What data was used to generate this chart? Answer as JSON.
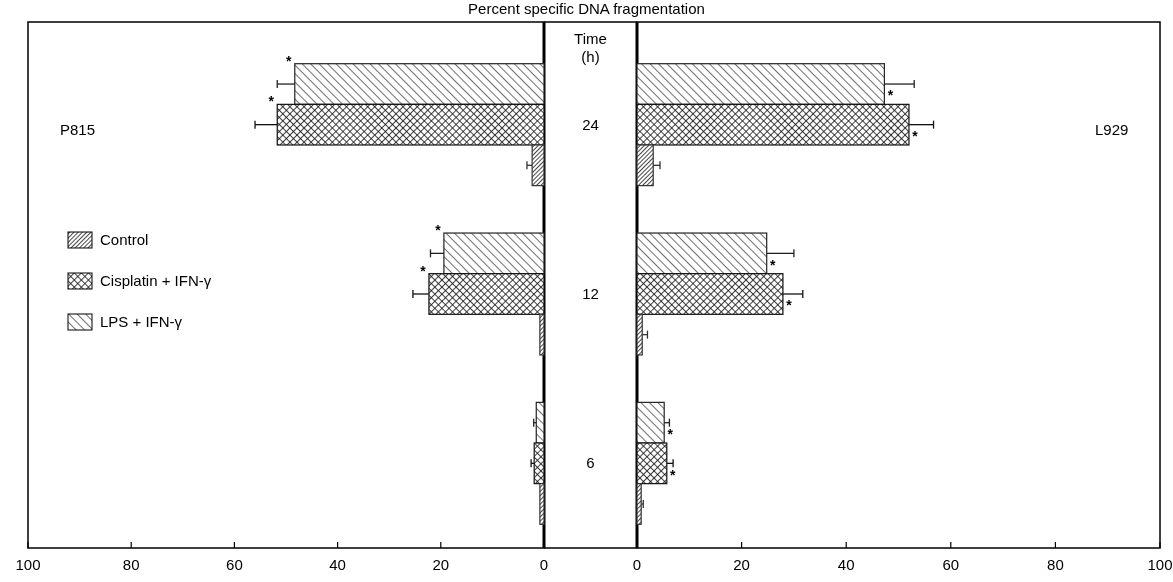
{
  "chart_data": [
    {
      "type": "bar",
      "orientation": "horizontal",
      "title": "Percent specific DNA fragmentation",
      "ylabel": "Time (h)",
      "annotations": [
        "P815"
      ],
      "categories": [
        "24",
        "12",
        "6"
      ],
      "xlim": [
        100,
        0
      ],
      "xticks": [
        100,
        80,
        60,
        40,
        20,
        0
      ],
      "legend": "center left",
      "series": [
        {
          "name": "Control",
          "color": "#333333",
          "values": [
            2.3,
            0.8,
            0.8
          ],
          "errors": [
            [
              2.3,
              3.3
            ],
            null,
            null
          ],
          "value_labels": [
            null,
            null,
            null
          ]
        },
        {
          "name": "Cisplatin + IFN-γ",
          "color": "#111111",
          "values": [
            51.7,
            22.3,
            1.9
          ],
          "errors": [
            [
              51.7,
              56
            ],
            [
              22.3,
              25.4
            ],
            [
              1.9,
              2.5
            ]
          ],
          "value_labels": [
            "*",
            "*",
            null
          ]
        },
        {
          "name": "LPS + IFN-γ",
          "color": "#222222",
          "values": [
            48.3,
            19.4,
            1.5
          ],
          "errors": [
            [
              48.3,
              51.7
            ],
            [
              19.4,
              22
            ],
            [
              1.5,
              2
            ]
          ],
          "value_labels": [
            "*",
            "*",
            null
          ]
        }
      ]
    },
    {
      "type": "bar",
      "orientation": "horizontal",
      "annotations": [
        "L929"
      ],
      "categories": [
        "24",
        "12",
        "6"
      ],
      "xlim": [
        0,
        100
      ],
      "xticks": [
        0,
        20,
        40,
        60,
        80,
        100
      ],
      "tick_labels": "x",
      "series": [
        {
          "color": "#333333",
          "values": [
            3.1,
            1,
            0.8
          ],
          "errors": [
            [
              3.1,
              4.4
            ],
            [
              1,
              2
            ],
            [
              0.8,
              1.2
            ]
          ],
          "value_labels": [
            null,
            null,
            null
          ]
        },
        {
          "color": "#111111",
          "values": [
            52,
            27.9,
            5.7
          ],
          "errors": [
            [
              52,
              56.7
            ],
            [
              27.9,
              31.7
            ],
            [
              5.7,
              6.9
            ]
          ],
          "value_labels": [
            "*",
            "*",
            "*"
          ]
        },
        {
          "color": "#222222",
          "values": [
            47.3,
            24.8,
            5.2
          ],
          "errors": [
            [
              47.3,
              53
            ],
            [
              24.8,
              30
            ],
            [
              5.2,
              6.2
            ]
          ],
          "value_labels": [
            "*",
            "*",
            "*"
          ]
        }
      ]
    }
  ]
}
